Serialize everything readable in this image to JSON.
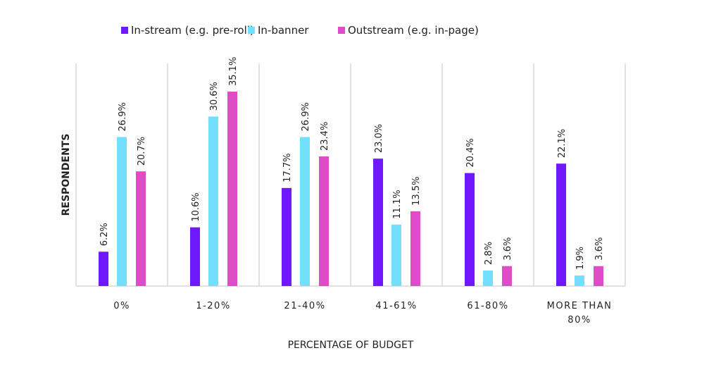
{
  "chart_data": {
    "type": "bar",
    "title": "",
    "xlabel": "PERCENTAGE OF BUDGET",
    "ylabel": "RESPONDENTS",
    "categories": [
      "0%",
      "1-20%",
      "21-40%",
      "41-61%",
      "61-80%",
      "MORE THAN 80%"
    ],
    "category_lines": [
      [
        "0%"
      ],
      [
        "1-20%"
      ],
      [
        "21-40%"
      ],
      [
        "41-61%"
      ],
      [
        "61-80%"
      ],
      [
        "MORE THAN",
        "80%"
      ]
    ],
    "series": [
      {
        "name": "In-stream (e.g. pre-roll)",
        "color": "#7019FF",
        "values": [
          6.2,
          10.6,
          17.7,
          23.0,
          20.4,
          22.1
        ]
      },
      {
        "name": "In-banner",
        "color": "#73DFFF",
        "values": [
          26.9,
          30.6,
          26.9,
          11.1,
          2.8,
          1.9
        ]
      },
      {
        "name": "Outstream (e.g. in-page)",
        "color": "#E04BC8",
        "values": [
          20.7,
          35.1,
          23.4,
          13.5,
          3.6,
          3.6
        ]
      }
    ],
    "data_label_format": "percent, 1 decimal",
    "ylim": [
      0,
      40
    ],
    "y_axis_ticks_shown": false,
    "grid": "vertical separators between categories",
    "legend": "top"
  }
}
